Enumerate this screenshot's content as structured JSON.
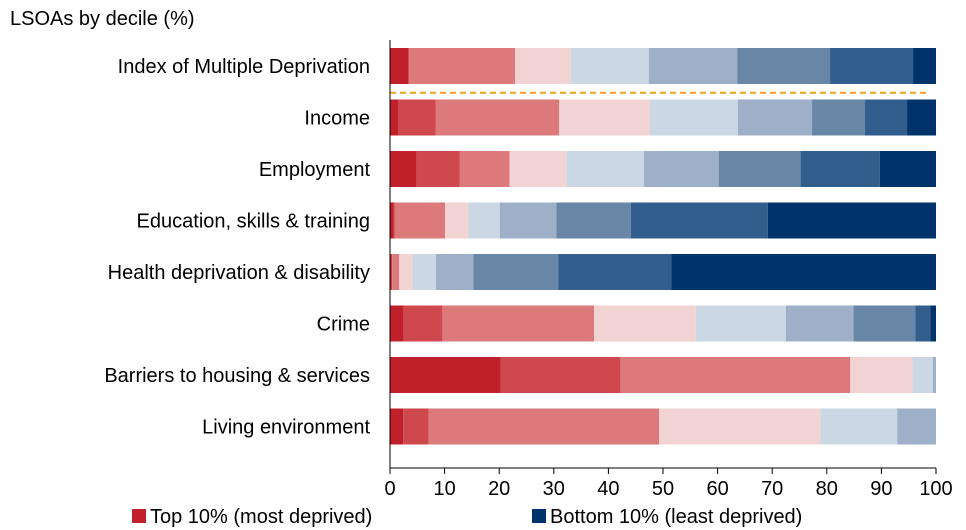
{
  "chart_data": {
    "type": "bar",
    "orientation": "horizontal",
    "stacked": true,
    "title": "LSOAs by decile (%)",
    "categories": [
      "Index of Multiple Deprivation",
      "Income",
      "Employment",
      "Education, skills & training",
      "Health deprivation & disability",
      "Crime",
      "Barriers to housing & services",
      "Living environment"
    ],
    "series": [
      {
        "name": "Top 10% (most deprived)",
        "color": "#c0202a",
        "values": [
          3.4,
          1.6,
          4.9,
          0.7,
          0.3,
          2.5,
          20.3,
          2.4
        ]
      },
      {
        "name": "",
        "color": "#cf484e",
        "values": [
          0,
          6.8,
          7.9,
          0.2,
          0.1,
          7.1,
          21.9,
          4.7
        ]
      },
      {
        "name": "",
        "color": "#db797b",
        "values": [
          19.5,
          22.6,
          9.1,
          9.2,
          1.3,
          27.8,
          42.1,
          42.2
        ]
      },
      {
        "name": "",
        "color": "#f2d3d3",
        "values": [
          10.2,
          16.6,
          10.4,
          4.2,
          2.4,
          18.6,
          11.4,
          29.5
        ]
      },
      {
        "name": "",
        "color": "#cbd8e3",
        "values": [
          14.3,
          16.1,
          14.2,
          5.8,
          4.3,
          16.5,
          3.7,
          14.1
        ]
      },
      {
        "name": "",
        "color": "#9db0c7",
        "values": [
          16.2,
          13.6,
          13.7,
          10.4,
          6.9,
          12.4,
          0.6,
          7.1
        ]
      },
      {
        "name": "",
        "color": "#6886a6",
        "values": [
          17.0,
          9.7,
          15.0,
          13.6,
          15.5,
          11.3,
          0,
          0
        ]
      },
      {
        "name": "",
        "color": "#315e8c",
        "values": [
          15.2,
          7.7,
          14.5,
          25.1,
          20.7,
          2.8,
          0,
          0
        ]
      },
      {
        "name": "Bottom 10% (least deprived)",
        "color": "#00336a",
        "values": [
          4.2,
          5.3,
          10.3,
          30.8,
          48.5,
          1.0,
          0,
          0
        ]
      }
    ],
    "xlim": [
      0,
      100
    ],
    "xticks": [
      0,
      10,
      20,
      30,
      40,
      50,
      60,
      70,
      80,
      90,
      100
    ],
    "xlabel": "",
    "ylabel": "",
    "grid": false,
    "reference_line": {
      "between": [
        "Index of Multiple Deprivation",
        "Income"
      ],
      "style": "dashed",
      "color": "#e6a620"
    },
    "legend": {
      "placement": "bottom",
      "entries": [
        {
          "label": "Top 10% (most deprived)",
          "color": "#c0202a"
        },
        {
          "label": "Bottom 10% (least deprived)",
          "color": "#00336a"
        }
      ]
    }
  }
}
